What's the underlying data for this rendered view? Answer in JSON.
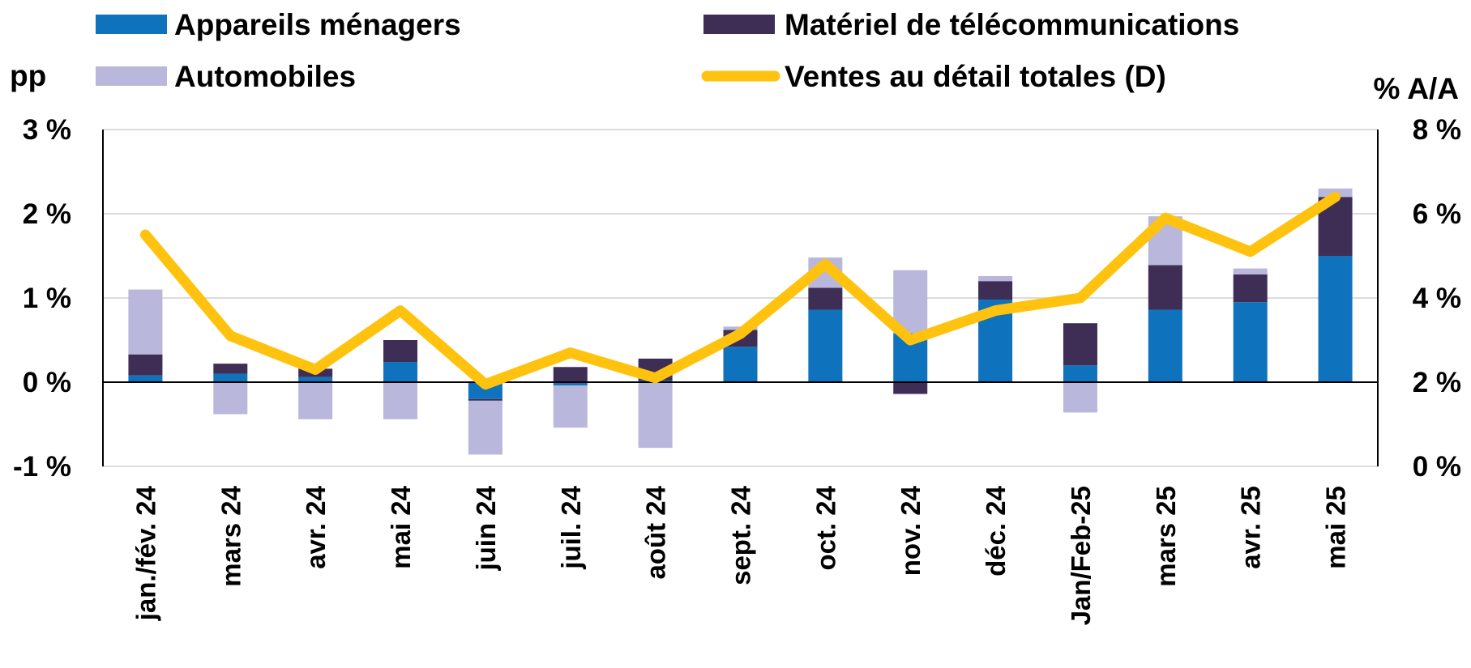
{
  "chart_data": {
    "type": "bar",
    "stacked": true,
    "categories": [
      "jan./fév. 24",
      "mars 24",
      "avr. 24",
      "mai 24",
      "juin 24",
      "juil. 24",
      "août 24",
      "sept. 24",
      "oct. 24",
      "nov. 24",
      "déc. 24",
      "Jan/Feb-25",
      "mars 25",
      "avr. 25",
      "mai 25"
    ],
    "series": [
      {
        "name": "Appareils ménagers",
        "axis": "left",
        "kind": "bar",
        "color": "#0E72BC",
        "values": [
          0.08,
          0.1,
          0.06,
          0.24,
          -0.2,
          -0.04,
          0.02,
          0.42,
          0.86,
          0.58,
          0.98,
          0.2,
          0.86,
          0.95,
          1.5
        ]
      },
      {
        "name": "Matériel de télécommunications",
        "axis": "left",
        "kind": "bar",
        "color": "#3E2E56",
        "values": [
          0.25,
          0.12,
          0.1,
          0.26,
          -0.02,
          0.18,
          0.26,
          0.2,
          0.26,
          -0.14,
          0.22,
          0.5,
          0.53,
          0.33,
          0.7
        ]
      },
      {
        "name": "Automobiles",
        "axis": "left",
        "kind": "bar",
        "color": "#B9B7DC",
        "values": [
          0.77,
          -0.38,
          -0.44,
          -0.44,
          -0.64,
          -0.5,
          -0.78,
          0.04,
          0.36,
          0.75,
          0.06,
          -0.36,
          0.58,
          0.07,
          0.1
        ]
      },
      {
        "name": "Ventes au détail totales (D)",
        "axis": "right",
        "kind": "line",
        "color": "#FFC20E",
        "values": [
          5.5,
          3.1,
          2.3,
          3.7,
          1.95,
          2.7,
          2.1,
          3.15,
          4.8,
          3.0,
          3.7,
          4.0,
          5.9,
          5.1,
          6.4
        ]
      }
    ],
    "left_axis": {
      "title": "pp",
      "ylim": [
        -1,
        3
      ],
      "ticks": [
        -1,
        0,
        1,
        2,
        3
      ],
      "tick_labels": [
        "-1 %",
        "0 %",
        "1 %",
        "2 %",
        "3 %"
      ]
    },
    "right_axis": {
      "title": "% A/A",
      "ylim": [
        0,
        8
      ],
      "ticks": [
        0,
        2,
        4,
        6,
        8
      ],
      "tick_labels": [
        "0 %",
        "2 %",
        "4 %",
        "6 %",
        "8 %"
      ]
    },
    "grid": true,
    "legend_position": "top"
  }
}
